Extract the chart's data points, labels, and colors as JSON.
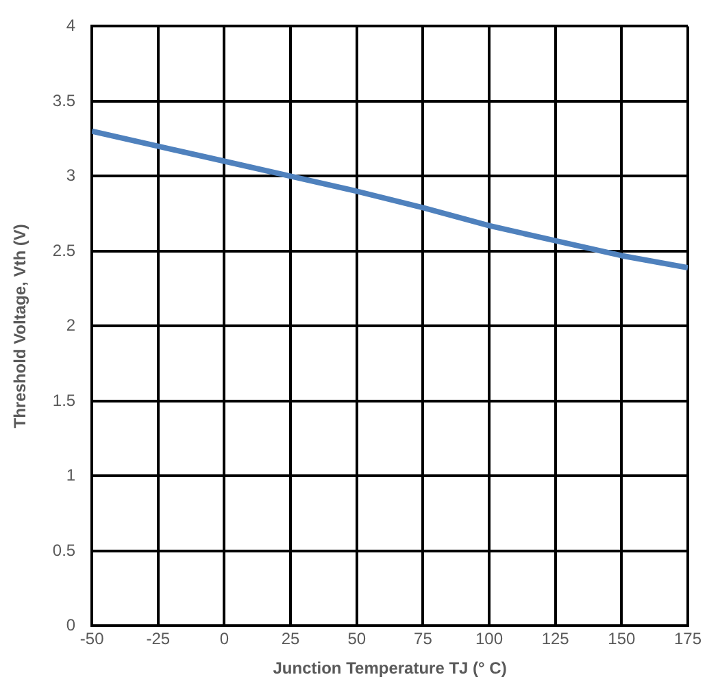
{
  "chart_data": {
    "type": "line",
    "xlabel": "Junction Temperature TJ (° C)",
    "ylabel": "Threshold Voltage, Vth (V)",
    "x": [
      -50,
      -25,
      0,
      25,
      50,
      75,
      100,
      125,
      150,
      175
    ],
    "series": [
      {
        "color": "#4f81bd",
        "values": [
          3.3,
          3.2,
          3.1,
          3.0,
          2.9,
          2.79,
          2.67,
          2.57,
          2.47,
          2.39
        ]
      }
    ],
    "xlim": [
      -50,
      175
    ],
    "xticks": [
      -50,
      -25,
      0,
      25,
      50,
      75,
      100,
      125,
      150,
      175
    ],
    "ylim": [
      0,
      4
    ],
    "yticks": [
      0,
      0.5,
      1,
      1.5,
      2,
      2.5,
      3,
      3.5,
      4
    ],
    "grid": true,
    "legend": false,
    "marker": "none",
    "line_style": "solid"
  }
}
